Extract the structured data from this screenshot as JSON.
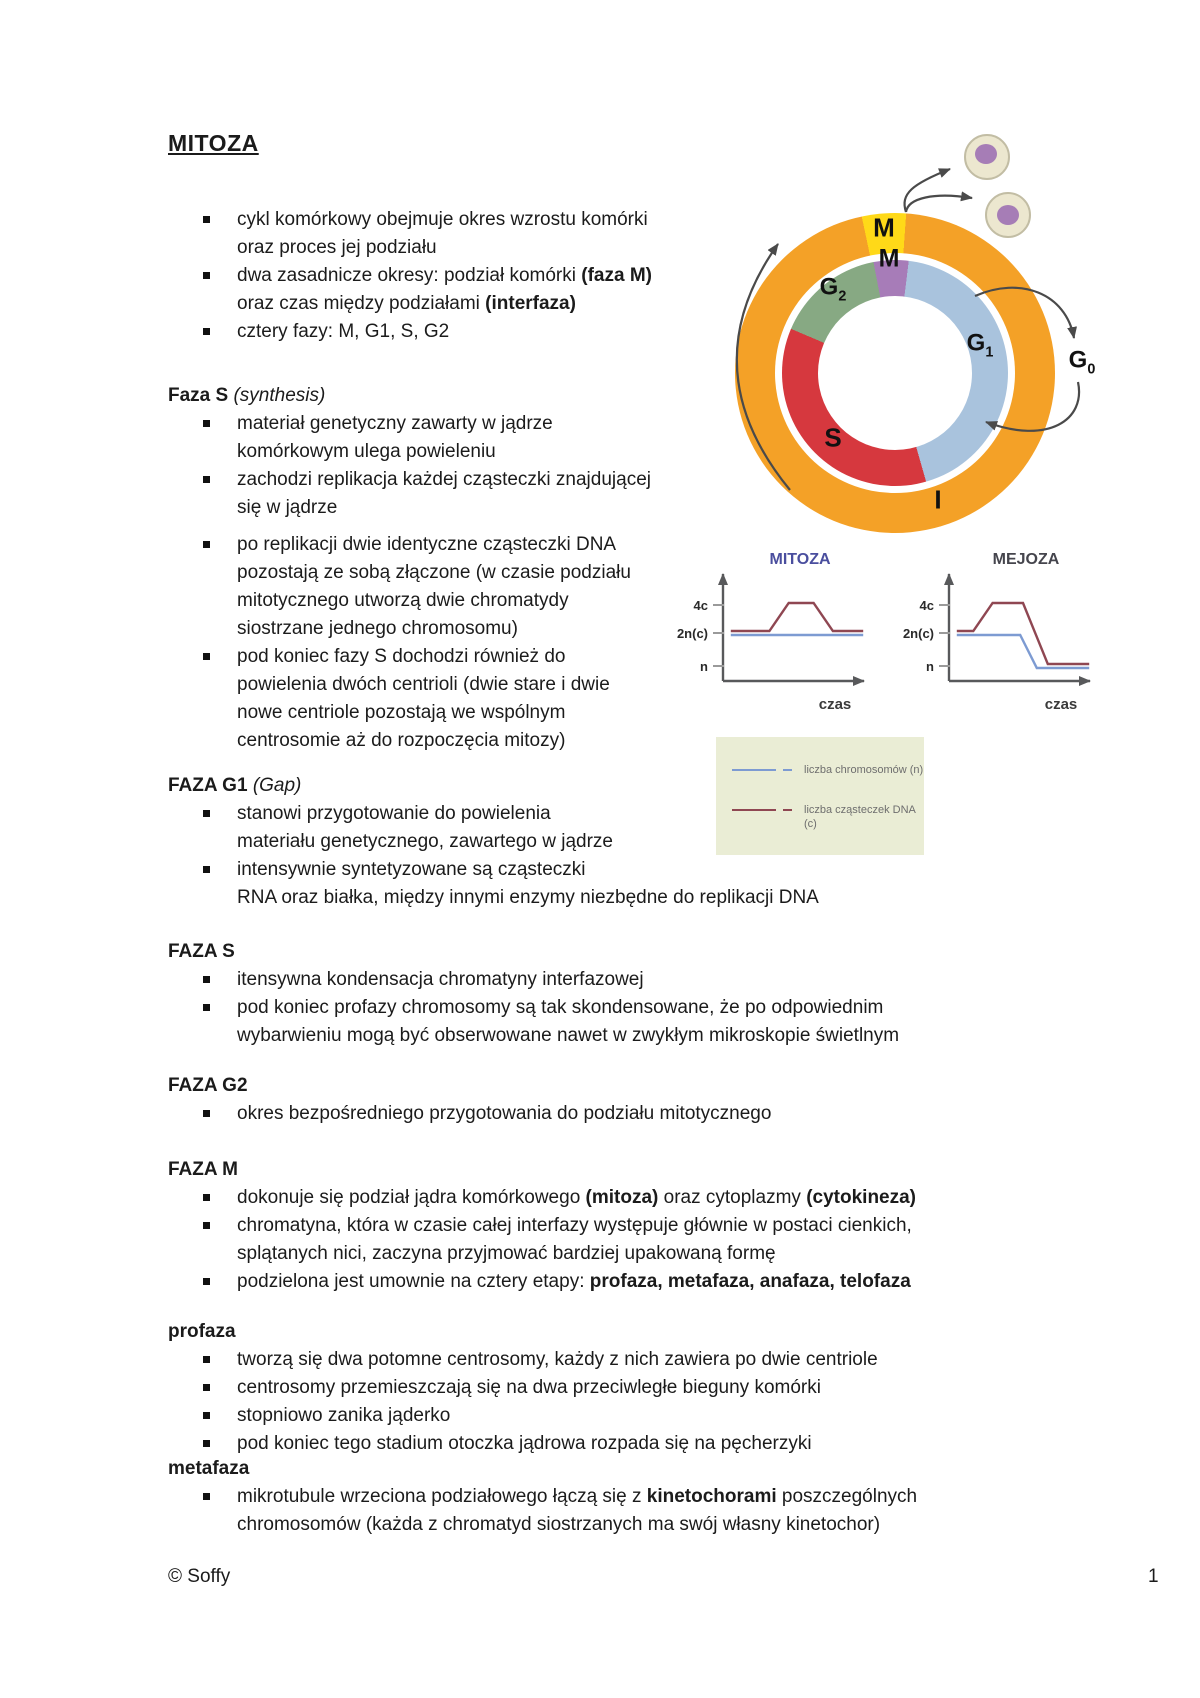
{
  "page": {
    "title": "MITOZA",
    "footer_left": "© Soffy",
    "footer_page": "1"
  },
  "intro": {
    "bullets": [
      "cykl komórkowy obejmuje okres wzrostu komórki\noraz proces jej podziału",
      [
        {
          "t": "dwa zasadnicze okresy: podział komórki "
        },
        {
          "t": "(faza M)",
          "b": true
        },
        {
          "t": "\noraz czas między podziałami "
        },
        {
          "t": "(interfaza)",
          "b": true
        }
      ],
      "cztery fazy: M, G1, S, G2"
    ]
  },
  "sections": [
    {
      "heading": [
        {
          "t": "Faza S "
        },
        {
          "t": "(synthesis)",
          "i": true,
          "r": true
        }
      ],
      "bullets": [
        "materiał genetyczny zawarty w jądrze\nkomórkowym ulega powieleniu",
        "zachodzi replikacja każdej cząsteczki znajdującej\nsię w jądrze",
        "po replikacji dwie identyczne cząsteczki DNA\npozostają ze sobą złączone (w czasie podziału\nmitotycznego utworzą dwie chromatydy\nsiostrzane jednego chromosomu)",
        "pod koniec fazy S dochodzi również do\npowielenia dwóch centrioli (dwie stare i dwie\nnowe centriole pozostają we wspólnym\ncentrosomie aż do rozpoczęcia mitozy)"
      ]
    },
    {
      "heading": [
        {
          "t": "FAZA G1 "
        },
        {
          "t": "(Gap)",
          "i": true,
          "r": true
        }
      ],
      "bullets": [
        "stanowi przygotowanie do powielenia\nmateriału genetycznego, zawartego w jądrze",
        "intensywnie syntetyzowane są cząsteczki\nRNA oraz białka, między innymi enzymy niezbędne do replikacji DNA"
      ]
    },
    {
      "heading": "FAZA S",
      "bullets": [
        "itensywna kondensacja chromatyny interfazowej",
        "pod koniec profazy chromosomy są tak skondensowane, że po odpowiednim\nwybarwieniu mogą być obserwowane nawet w zwykłym mikroskopie świetlnym"
      ]
    },
    {
      "heading": "FAZA G2",
      "bullets": [
        "okres bezpośredniego przygotowania do podziału mitotycznego"
      ]
    },
    {
      "heading": "FAZA M",
      "bullets": [
        [
          {
            "t": "dokonuje się podział jądra komórkowego "
          },
          {
            "t": "(mitoza)",
            "b": true
          },
          {
            "t": " oraz cytoplazmy "
          },
          {
            "t": "(cytokineza)",
            "b": true
          }
        ],
        "chromatyna, która w czasie całej interfazy występuje głównie w postaci cienkich,\nsplątanych nici, zaczyna przyjmować bardziej upakowaną formę",
        [
          {
            "t": "podzielona jest umownie na cztery etapy: "
          },
          {
            "t": "profaza, metafaza, anafaza, telofaza",
            "b": true
          }
        ]
      ]
    },
    {
      "heading": "profaza",
      "bullets": [
        "tworzą się dwa potomne centrosomy, każdy z nich zawiera po dwie centriole",
        "centrosomy przemieszczają się na dwa przeciwległe bieguny komórki",
        "stopniowo zanika jąderko",
        "pod koniec tego stadium otoczka jądrowa rozpada się na pęcherzyki"
      ]
    },
    {
      "heading": "metafaza",
      "bullets": [
        [
          {
            "t": "mikrotubule wrzeciona podziałowego łączą się z "
          },
          {
            "t": "kinetochorami",
            "b": true
          },
          {
            "t": " poszczególnych\nchromosomów (każda z chromatyd siostrzanych ma swój własny kinetochor)"
          }
        ]
      ]
    }
  ],
  "diagram": {
    "labels": {
      "m_outer": "M",
      "m_inner": "M",
      "g2": [
        {
          "t": "G"
        },
        {
          "t": "2",
          "sub": true
        }
      ],
      "g1": [
        {
          "t": "G"
        },
        {
          "t": "1",
          "sub": true
        }
      ],
      "g0": [
        {
          "t": "G"
        },
        {
          "t": "0",
          "sub": true
        }
      ],
      "s": "S",
      "interphase": "I"
    }
  },
  "legend": {
    "items": [
      "liczba chromosomów (n)",
      "liczba cząsteczek DNA\n(c)"
    ]
  },
  "chart_data": [
    {
      "type": "line",
      "title": "MITOZA",
      "xlabel": "czas",
      "ylabel": "",
      "yticks": [
        "4c",
        "2n(c)",
        "n"
      ],
      "legend_position": "below-left",
      "grid": false,
      "series": [
        {
          "name": "liczba chromosomów (n)",
          "color": "#7D9BD2",
          "dy": 2,
          "points": [
            [
              0.02,
              "2n"
            ],
            [
              0.98,
              "2n"
            ]
          ]
        },
        {
          "name": "liczba cząsteczek DNA (c)",
          "color": "#8F4752",
          "dy": -2,
          "points": [
            [
              0.02,
              "2n"
            ],
            [
              0.3,
              "2n"
            ],
            [
              0.44,
              "4c"
            ],
            [
              0.62,
              "4c"
            ],
            [
              0.76,
              "2n"
            ],
            [
              0.98,
              "2n"
            ]
          ]
        }
      ]
    },
    {
      "type": "line",
      "title": "MEJOZA",
      "xlabel": "czas",
      "ylabel": "",
      "yticks": [
        "4c",
        "2n(c)",
        "n"
      ],
      "legend_position": "below-left",
      "grid": false,
      "series": [
        {
          "name": "liczba chromosomów (n)",
          "color": "#7D9BD2",
          "dy": 2,
          "points": [
            [
              0.02,
              "2n"
            ],
            [
              0.48,
              "2n"
            ],
            [
              0.6,
              "n"
            ],
            [
              0.98,
              "n"
            ]
          ]
        },
        {
          "name": "liczba cząsteczek DNA (c)",
          "color": "#8F4752",
          "dy": -2,
          "points": [
            [
              0.02,
              "2n"
            ],
            [
              0.14,
              "2n"
            ],
            [
              0.28,
              "4c"
            ],
            [
              0.5,
              "4c"
            ],
            [
              0.68,
              "n"
            ],
            [
              0.98,
              "n"
            ]
          ]
        }
      ]
    }
  ],
  "colors": {
    "orange": "#F4A127",
    "yellow": "#FFD918",
    "purple": "#A77CB8",
    "blue": "#A9C3DD",
    "green": "#87A983",
    "red": "#D6383E",
    "cell_fill": "#ECE7CF",
    "cell_stroke": "#C2BDA4",
    "nucleus": "#A67DB6",
    "line_blue": "#7D9BD2",
    "line_red": "#8F4752",
    "mitoza_title": "#4A4E9E",
    "mejoza_title": "#45454D",
    "legend_bg": "#EAEDD5",
    "legend_text": "#6E6E6E"
  }
}
